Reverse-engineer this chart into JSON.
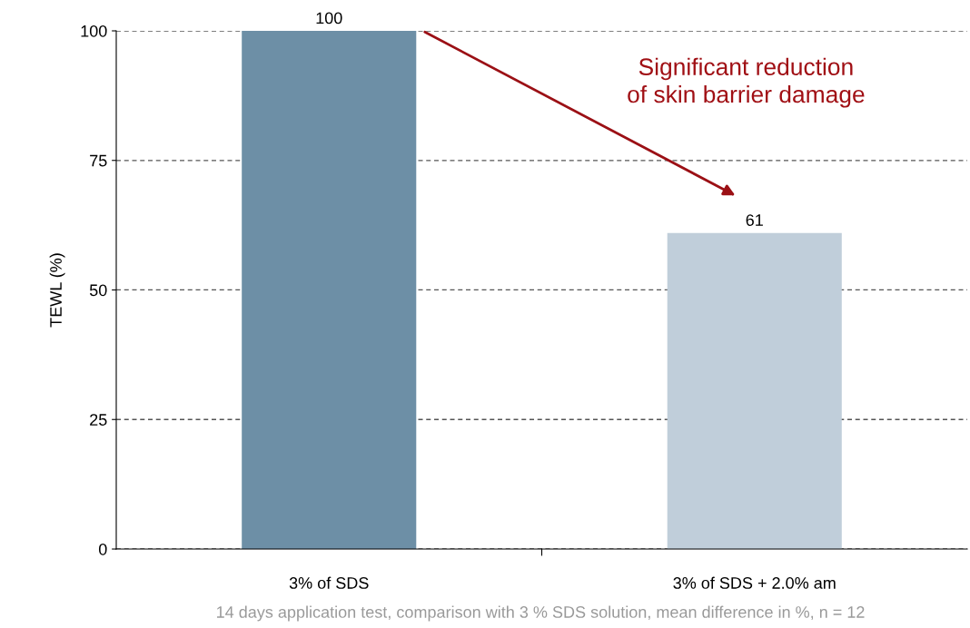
{
  "chart_data": {
    "type": "bar",
    "ylabel": "TEWL (%)",
    "categories": [
      "3% of SDS",
      "3% of SDS + 2.0% am"
    ],
    "values": [
      100,
      61
    ],
    "colors": [
      "#6d8fa6",
      "#c0ceda"
    ],
    "data_labels": true,
    "ylim": [
      0,
      100
    ],
    "yticks": [
      0,
      25,
      50,
      75,
      100
    ],
    "grid": "y",
    "annotations": [
      "Significant reduction\nof skin barrier damage",
      "14 days application test, comparison with 3 % SDS solution, mean difference in %, n = 12"
    ]
  }
}
